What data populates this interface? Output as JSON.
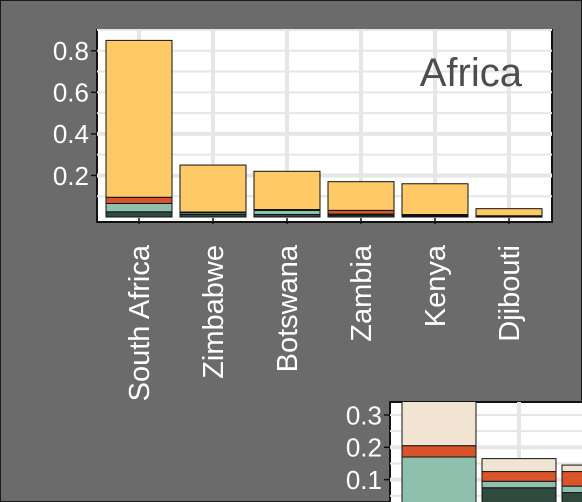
{
  "chart_data": [
    {
      "type": "bar",
      "stacked": true,
      "title": "Africa",
      "categories": [
        "South Africa",
        "Zimbabwe",
        "Botswana",
        "Zambia",
        "Kenya",
        "Djibouti"
      ],
      "series": [
        {
          "color": "#2f4a3f",
          "values": [
            0.025,
            0.012,
            0.012,
            0.009,
            0.004,
            0.002
          ]
        },
        {
          "color": "#8fbfad",
          "values": [
            0.04,
            0.008,
            0.02,
            0.005,
            0.004,
            0.002
          ]
        },
        {
          "color": "#d9532b",
          "values": [
            0.03,
            0.004,
            0.004,
            0.018,
            0.004,
            0.002
          ]
        },
        {
          "color": "#ffc966",
          "values": [
            0.755,
            0.226,
            0.184,
            0.138,
            0.148,
            0.034
          ]
        }
      ],
      "yticks": [
        0.2,
        0.4,
        0.6,
        0.8
      ],
      "ytick_labels": [
        "0.2",
        "0.4",
        "0.6",
        "0.8"
      ],
      "ylim": [
        0,
        0.9
      ],
      "grid": true
    },
    {
      "type": "bar",
      "stacked": true,
      "title": "",
      "categories": [
        "",
        "",
        ""
      ],
      "series": [
        {
          "color": "#2f4a3f",
          "values": [
            0.0,
            0.075,
            0.06
          ]
        },
        {
          "color": "#8fbfad",
          "values": [
            0.17,
            0.02,
            0.02
          ]
        },
        {
          "color": "#d9532b",
          "values": [
            0.035,
            0.03,
            0.045
          ]
        },
        {
          "color": "#f2e4d3",
          "values": [
            0.15,
            0.04,
            0.02
          ]
        }
      ],
      "yticks": [
        0.1,
        0.2,
        0.3
      ],
      "ytick_labels": [
        "0.1",
        "0.2",
        "0.3"
      ],
      "ylim": [
        0,
        0.34
      ],
      "grid": true
    }
  ]
}
